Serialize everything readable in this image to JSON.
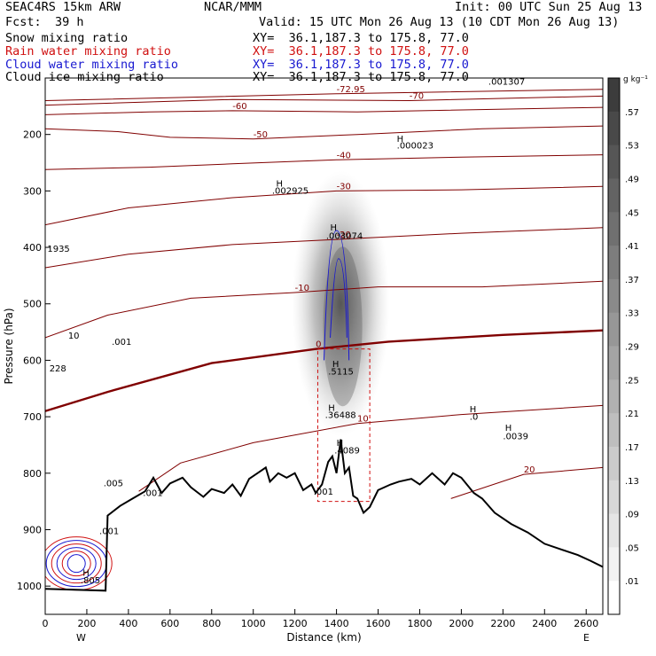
{
  "header": {
    "model": "SEAC4RS 15km ARW",
    "center": "NCAR/MMM",
    "init": "Init: 00 UTC Sun 25 Aug 13",
    "fcst_label": "Fcst:",
    "fcst_value": "39 h",
    "valid": "Valid: 15 UTC Mon 26 Aug 13 (10 CDT Mon 26 Aug 13)"
  },
  "fields": [
    {
      "name": "Snow mixing ratio",
      "xy": "XY=  36.1,187.3 to 175.8, 77.0",
      "color": "#000000"
    },
    {
      "name": "Rain water mixing ratio",
      "xy": "XY=  36.1,187.3 to 175.8, 77.0",
      "color": "#d01010"
    },
    {
      "name": "Cloud water mixing ratio",
      "xy": "XY=  36.1,187.3 to 175.8, 77.0",
      "color": "#1818d0"
    },
    {
      "name": "Cloud ice mixing ratio",
      "xy": "XY=  36.1,187.3 to 175.8, 77.0",
      "color": "#000000"
    }
  ],
  "chart_data": {
    "type": "cross-section",
    "xlabel": "Distance (km)",
    "ylabel": "Pressure (hPa)",
    "xlim": [
      0,
      2680
    ],
    "ylim": [
      1050,
      100
    ],
    "x_ticks": [
      0,
      200,
      400,
      600,
      800,
      1000,
      1200,
      1400,
      1600,
      1800,
      2000,
      2200,
      2400,
      2600
    ],
    "y_ticks": [
      200,
      300,
      400,
      500,
      600,
      700,
      800,
      900,
      1000
    ],
    "x_ends": [
      "W",
      "E"
    ],
    "colorbar": {
      "unit": "g kg⁻¹",
      "labels": [
        ".57",
        ".53",
        ".49",
        ".45",
        ".41",
        ".37",
        ".33",
        ".29",
        ".25",
        ".21",
        ".17",
        ".13",
        ".09",
        ".05",
        ".01"
      ]
    },
    "terrain_profile": [
      [
        0,
        1005
      ],
      [
        290,
        1008
      ],
      [
        300,
        875
      ],
      [
        360,
        858
      ],
      [
        420,
        845
      ],
      [
        480,
        832
      ],
      [
        520,
        808
      ],
      [
        560,
        835
      ],
      [
        600,
        818
      ],
      [
        660,
        808
      ],
      [
        700,
        825
      ],
      [
        760,
        842
      ],
      [
        800,
        828
      ],
      [
        860,
        835
      ],
      [
        900,
        820
      ],
      [
        940,
        840
      ],
      [
        980,
        810
      ],
      [
        1020,
        800
      ],
      [
        1060,
        790
      ],
      [
        1080,
        815
      ],
      [
        1120,
        800
      ],
      [
        1160,
        808
      ],
      [
        1200,
        800
      ],
      [
        1240,
        830
      ],
      [
        1280,
        820
      ],
      [
        1300,
        835
      ],
      [
        1330,
        820
      ],
      [
        1360,
        780
      ],
      [
        1380,
        770
      ],
      [
        1400,
        800
      ],
      [
        1420,
        740
      ],
      [
        1440,
        800
      ],
      [
        1460,
        790
      ],
      [
        1480,
        840
      ],
      [
        1500,
        845
      ],
      [
        1530,
        870
      ],
      [
        1560,
        860
      ],
      [
        1600,
        830
      ],
      [
        1660,
        820
      ],
      [
        1700,
        815
      ],
      [
        1760,
        810
      ],
      [
        1800,
        820
      ],
      [
        1860,
        800
      ],
      [
        1920,
        820
      ],
      [
        1960,
        800
      ],
      [
        2000,
        808
      ],
      [
        2060,
        835
      ],
      [
        2100,
        845
      ],
      [
        2160,
        870
      ],
      [
        2240,
        890
      ],
      [
        2320,
        905
      ],
      [
        2400,
        925
      ],
      [
        2480,
        935
      ],
      [
        2560,
        945
      ],
      [
        2620,
        955
      ],
      [
        2680,
        966
      ]
    ],
    "temperature_contours": [
      {
        "value": -72.95,
        "points": [
          [
            0,
            140
          ],
          [
            1400,
            128
          ],
          [
            2680,
            120
          ]
        ]
      },
      {
        "value": -70,
        "points": [
          [
            0,
            148
          ],
          [
            900,
            138
          ],
          [
            1750,
            140
          ],
          [
            2680,
            132
          ]
        ]
      },
      {
        "value": -60,
        "points": [
          [
            0,
            165
          ],
          [
            500,
            160
          ],
          [
            900,
            158
          ],
          [
            1500,
            160
          ],
          [
            2680,
            152
          ]
        ]
      },
      {
        "value": -50,
        "points": [
          [
            0,
            190
          ],
          [
            350,
            195
          ],
          [
            600,
            205
          ],
          [
            1000,
            208
          ],
          [
            1500,
            200
          ],
          [
            2100,
            190
          ],
          [
            2680,
            185
          ]
        ]
      },
      {
        "value": -40,
        "points": [
          [
            0,
            262
          ],
          [
            500,
            258
          ],
          [
            900,
            252
          ],
          [
            1400,
            245
          ],
          [
            2000,
            240
          ],
          [
            2680,
            236
          ]
        ]
      },
      {
        "value": -30,
        "points": [
          [
            0,
            360
          ],
          [
            400,
            330
          ],
          [
            900,
            312
          ],
          [
            1400,
            300
          ],
          [
            2000,
            298
          ],
          [
            2680,
            292
          ]
        ]
      },
      {
        "value": -20,
        "points": [
          [
            0,
            436
          ],
          [
            400,
            412
          ],
          [
            900,
            395
          ],
          [
            1400,
            386
          ],
          [
            2000,
            375
          ],
          [
            2680,
            365
          ]
        ]
      },
      {
        "value": -10,
        "points": [
          [
            0,
            560
          ],
          [
            300,
            520
          ],
          [
            700,
            490
          ],
          [
            1200,
            480
          ],
          [
            1600,
            470
          ],
          [
            2100,
            470
          ],
          [
            2680,
            460
          ]
        ]
      },
      {
        "value": 0,
        "points": [
          [
            0,
            690
          ],
          [
            300,
            656
          ],
          [
            800,
            605
          ],
          [
            1300,
            580
          ],
          [
            1650,
            567
          ],
          [
            2200,
            555
          ],
          [
            2680,
            547
          ]
        ]
      },
      {
        "value": 10,
        "points": [
          [
            450,
            832
          ],
          [
            650,
            782
          ],
          [
            1000,
            746
          ],
          [
            1500,
            712
          ],
          [
            2000,
            696
          ],
          [
            2680,
            680
          ]
        ]
      },
      {
        "value": 20,
        "points": [
          [
            1950,
            845
          ],
          [
            2300,
            802
          ],
          [
            2680,
            790
          ]
        ]
      }
    ],
    "annotations": [
      {
        "text": "H",
        "x": 1110,
        "y": 292
      },
      {
        "text": ".002925",
        "x": 1090,
        "y": 305
      },
      {
        "text": "H",
        "x": 1370,
        "y": 370
      },
      {
        "text": ".003074",
        "x": 1350,
        "y": 385
      },
      {
        "text": "H",
        "x": 1690,
        "y": 213
      },
      {
        "text": ".000023",
        "x": 1690,
        "y": 225
      },
      {
        "text": ".001307",
        "x": 2130,
        "y": 112
      },
      {
        "text": "1935",
        "x": 10,
        "y": 408
      },
      {
        "text": ".001",
        "x": 320,
        "y": 573
      },
      {
        "text": "10",
        "x": 110,
        "y": 562
      },
      {
        "text": "228",
        "x": 20,
        "y": 620
      },
      {
        "text": "H",
        "x": 1380,
        "y": 612
      },
      {
        "text": ".5115",
        "x": 1360,
        "y": 625
      },
      {
        "text": "H",
        "x": 1360,
        "y": 690
      },
      {
        "text": ".36488",
        "x": 1345,
        "y": 702
      },
      {
        "text": "H",
        "x": 1400,
        "y": 752
      },
      {
        "text": ".4089",
        "x": 1390,
        "y": 765
      },
      {
        "text": "H",
        "x": 2040,
        "y": 692
      },
      {
        "text": ".0",
        "x": 2040,
        "y": 705
      },
      {
        "text": "H",
        "x": 2210,
        "y": 725
      },
      {
        "text": ".0039",
        "x": 2200,
        "y": 740
      },
      {
        "text": ".001",
        "x": 1290,
        "y": 838
      },
      {
        "text": ".001",
        "x": 470,
        "y": 840
      },
      {
        "text": ".005",
        "x": 280,
        "y": 823
      },
      {
        "text": ".001",
        "x": 260,
        "y": 908
      },
      {
        "text": "H",
        "x": 180,
        "y": 982
      },
      {
        "text": ".805",
        "x": 170,
        "y": 995
      }
    ]
  }
}
